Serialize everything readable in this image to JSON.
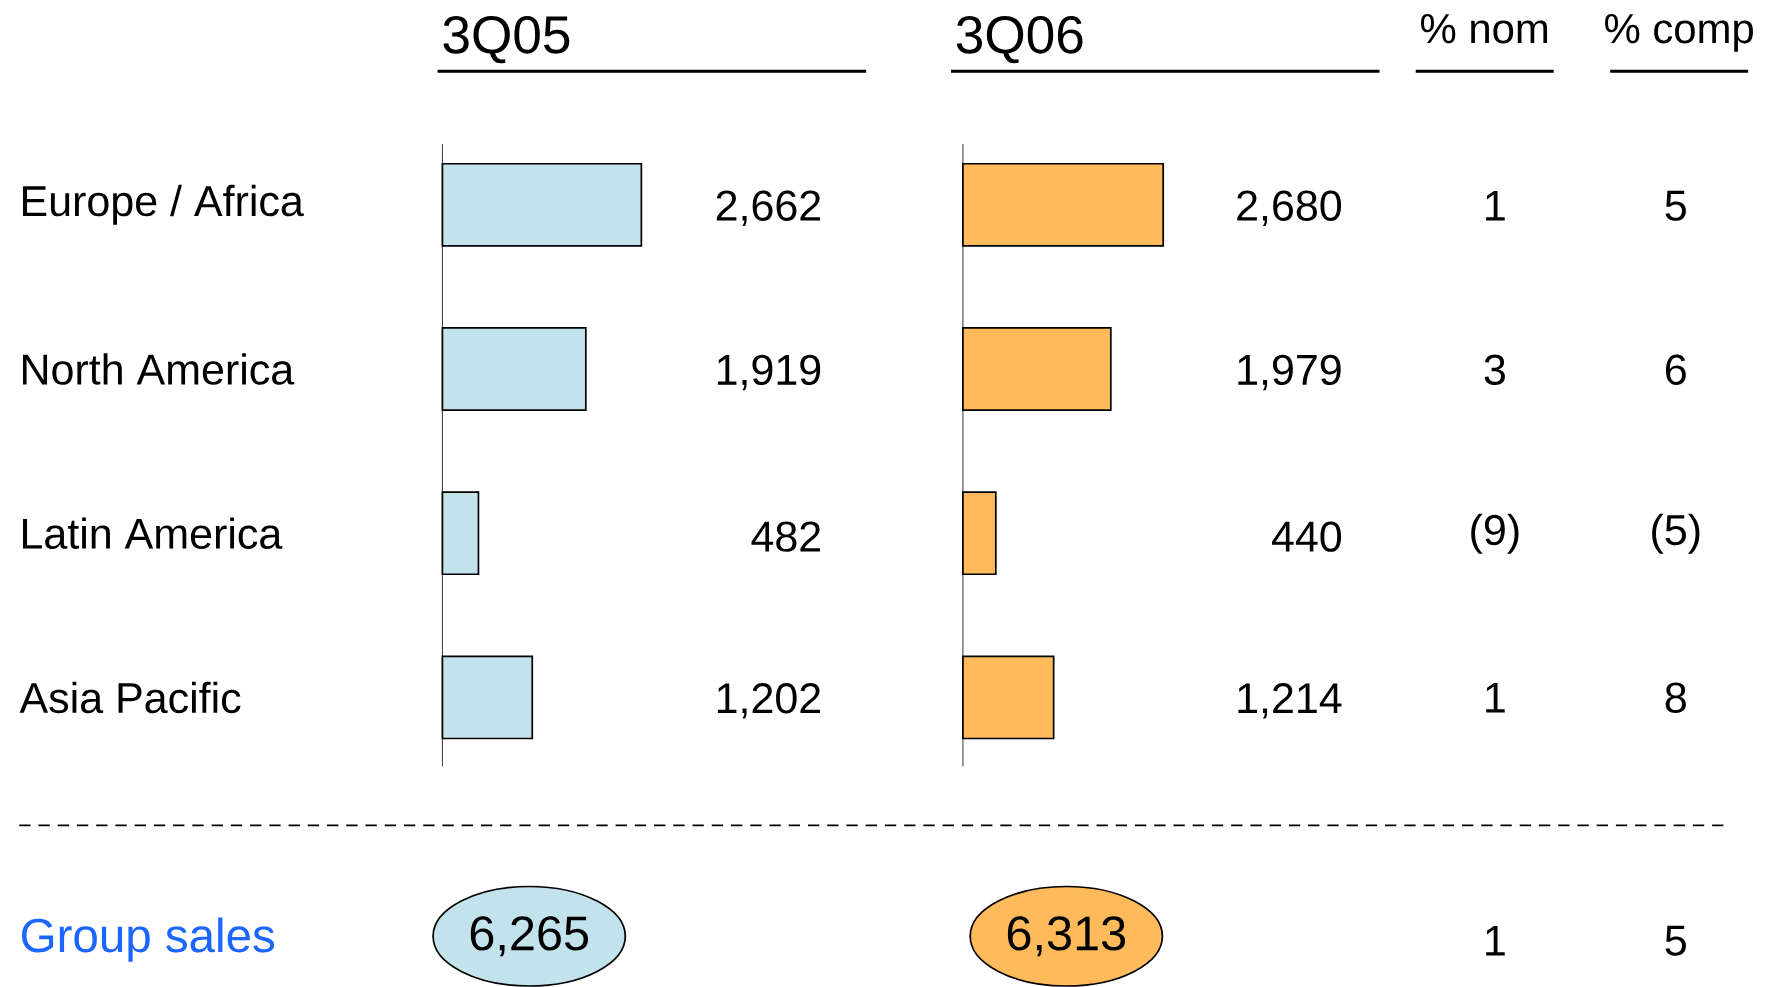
{
  "chart_data": [
    {
      "type": "bar",
      "orientation": "horizontal",
      "title": "3Q05",
      "categories": [
        "Europe / Africa",
        "North America",
        "Latin America",
        "Asia Pacific"
      ],
      "values": [
        2662,
        1919,
        482,
        1202
      ],
      "value_labels": [
        "2,662",
        "1,919",
        "482",
        "1,202"
      ],
      "color": "#c2e3ec",
      "tick_labels": "y",
      "annotations": [
        "Group sales",
        "6,265"
      ]
    },
    {
      "type": "bar",
      "orientation": "horizontal",
      "title": "3Q06",
      "categories": [
        null,
        null,
        null,
        null
      ],
      "values": [
        2680,
        1979,
        440,
        1214
      ],
      "value_labels": [
        "2,680",
        "1,979",
        "440",
        "1,214"
      ],
      "color": "#ffbb5b",
      "tick_labels": false,
      "annotations": [
        "6,313"
      ]
    },
    {
      "type": "other",
      "title": "% nom",
      "annotations": [
        "1",
        "3",
        "(9)",
        "1",
        "1"
      ]
    },
    {
      "type": "other",
      "title": "% comp",
      "annotations": [
        "5",
        "6",
        "(5)",
        "8",
        "5"
      ]
    }
  ]
}
